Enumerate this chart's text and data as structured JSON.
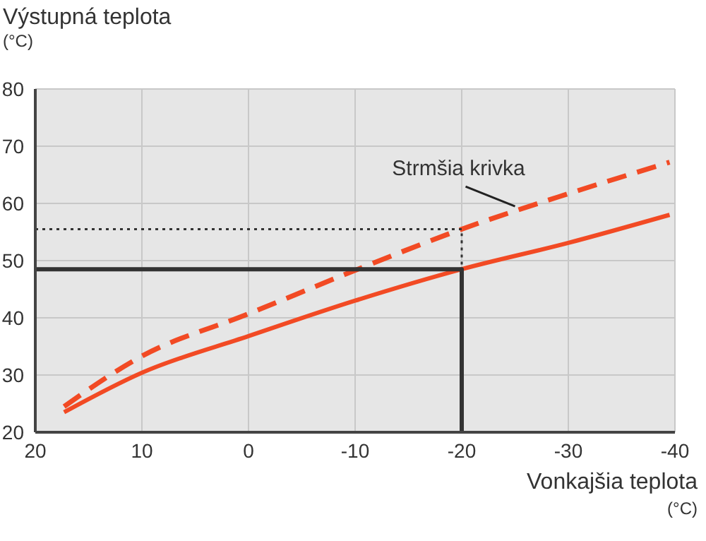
{
  "chart_data": {
    "type": "line",
    "ylabel": "Výstupná teplota\n(°C)",
    "xlabel": "Vonkajšia teplota\n(°C)",
    "xlim": [
      20,
      -40
    ],
    "xticks": [
      20,
      10,
      0,
      -10,
      -20,
      -30,
      -40
    ],
    "ylim": [
      20,
      80
    ],
    "yticks": [
      20,
      30,
      40,
      50,
      60,
      70,
      80
    ],
    "grid": true,
    "annotations": [
      {
        "text": "Strmšia krivka",
        "x": -25,
        "y": 59
      }
    ],
    "series": [
      {
        "color": "#f24a24",
        "x": [
          17.3,
          10,
          0,
          -10,
          -20,
          -30,
          -39.5
        ],
        "values": [
          23.5,
          30.4,
          36.8,
          43,
          48.5,
          53.1,
          58
        ],
        "line_style": "solid"
      },
      {
        "color": "#f24a24",
        "x": [
          17.3,
          10,
          0,
          -10,
          -20,
          -30,
          -39.5
        ],
        "values": [
          24.5,
          33.3,
          40.7,
          48.3,
          55.5,
          61.7,
          67.2
        ],
        "line_style": "dashed"
      },
      {
        "color": "#333333",
        "x": [
          20,
          -20,
          -20
        ],
        "values": [
          48.5,
          48.5,
          20
        ],
        "line_style": "solid"
      },
      {
        "color": "#333333",
        "x": [
          20,
          -20,
          -20
        ],
        "values": [
          55.5,
          55.5,
          48.5
        ],
        "line_style": "dotted"
      }
    ]
  }
}
